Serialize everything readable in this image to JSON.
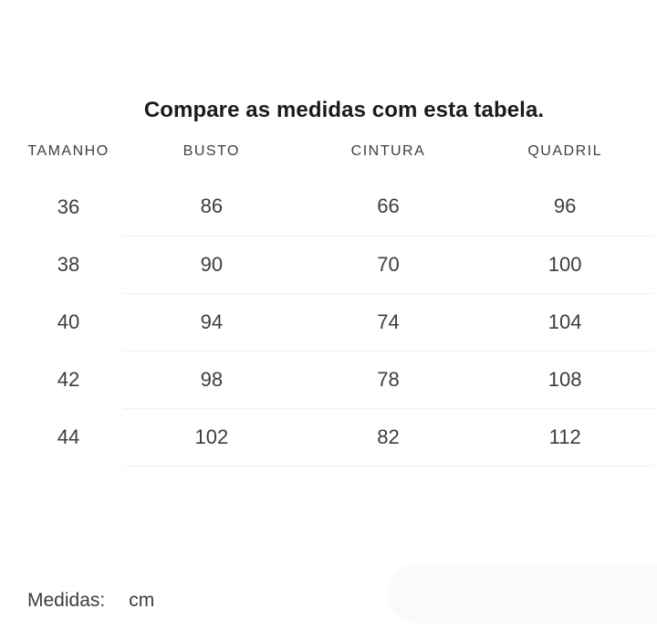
{
  "title": "Compare as medidas com esta tabela.",
  "table": {
    "headers": [
      "TAMANHO",
      "BUSTO",
      "CINTURA",
      "QUADRIL"
    ],
    "rows": [
      [
        "36",
        "86",
        "66",
        "96"
      ],
      [
        "38",
        "90",
        "70",
        "100"
      ],
      [
        "40",
        "94",
        "74",
        "104"
      ],
      [
        "42",
        "98",
        "78",
        "108"
      ],
      [
        "44",
        "102",
        "82",
        "112"
      ]
    ]
  },
  "footer": {
    "label": "Medidas:",
    "unit": "cm"
  },
  "colors": {
    "title_text": "#1b1b1b",
    "body_text": "#3d3d3d",
    "divider": "#f1f1f1",
    "panel": "#fafafa",
    "background": "#ffffff"
  }
}
